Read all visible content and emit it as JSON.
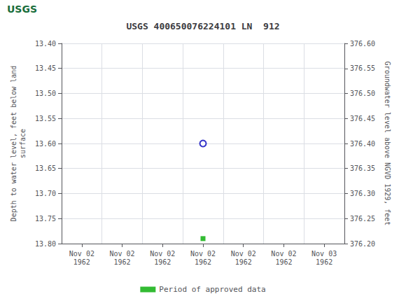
{
  "chart_data": {
    "type": "scatter",
    "title": "USGS 400650076224101 LN  912",
    "annotations": [
      "USGS"
    ],
    "ylabel": "Depth to water level, feet below land\nsurface",
    "y2label": "Groundwater level above NGVD 1929, feet",
    "categories": [
      "Nov 02\n1962",
      "Nov 02\n1962",
      "Nov 02\n1962",
      "Nov 02\n1962",
      "Nov 02\n1962",
      "Nov 02\n1962",
      "Nov 03\n1962"
    ],
    "series": [
      {
        "color": "#0000bb",
        "marker": "open_circle",
        "values": [
          null,
          null,
          null,
          13.6,
          null,
          null,
          null
        ]
      },
      {
        "name": "Period of approved data",
        "color": "#00aa00",
        "marker": "square",
        "values": [
          null,
          null,
          null,
          13.79,
          null,
          null,
          null
        ]
      }
    ],
    "ylim": [
      13.8,
      13.4
    ],
    "yticks": [
      {
        "value": 13.4,
        "label": "13.40"
      },
      13.45,
      {
        "value": 13.5,
        "label": "13.50"
      },
      13.55,
      {
        "value": 13.6,
        "label": "13.60"
      },
      13.65,
      {
        "value": 13.7,
        "label": "13.70"
      },
      13.75,
      {
        "value": 13.8,
        "label": "13.80"
      }
    ],
    "y2lim": [
      376.2,
      376.6
    ],
    "y2ticks": [
      {
        "value": 376.6,
        "label": "376.60"
      },
      376.55,
      {
        "value": 376.5,
        "label": "376.50"
      },
      376.45,
      {
        "value": 376.4,
        "label": "376.40"
      },
      376.35,
      {
        "value": 376.3,
        "label": "376.30"
      },
      376.25,
      {
        "value": 376.2,
        "label": "376.20"
      }
    ],
    "grid": true,
    "legend": "bottom"
  }
}
